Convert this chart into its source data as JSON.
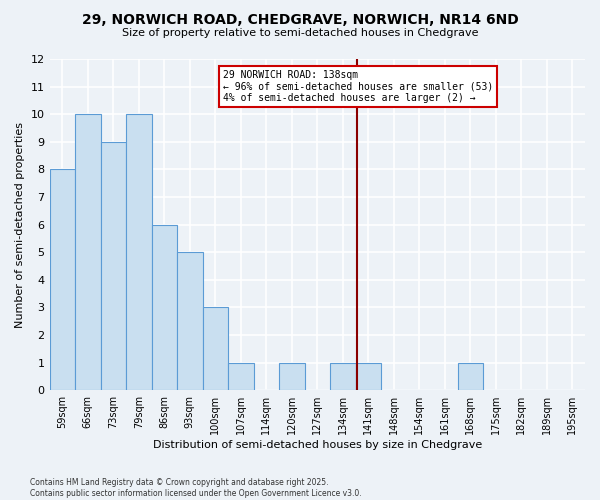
{
  "title": "29, NORWICH ROAD, CHEDGRAVE, NORWICH, NR14 6ND",
  "subtitle": "Size of property relative to semi-detached houses in Chedgrave",
  "xlabel": "Distribution of semi-detached houses by size in Chedgrave",
  "ylabel": "Number of semi-detached properties",
  "footnote1": "Contains HM Land Registry data © Crown copyright and database right 2025.",
  "footnote2": "Contains public sector information licensed under the Open Government Licence v3.0.",
  "bins": [
    "59sqm",
    "66sqm",
    "73sqm",
    "79sqm",
    "86sqm",
    "93sqm",
    "100sqm",
    "107sqm",
    "114sqm",
    "120sqm",
    "127sqm",
    "134sqm",
    "141sqm",
    "148sqm",
    "154sqm",
    "161sqm",
    "168sqm",
    "175sqm",
    "182sqm",
    "189sqm",
    "195sqm"
  ],
  "values": [
    8,
    10,
    9,
    10,
    6,
    5,
    3,
    1,
    0,
    1,
    0,
    1,
    1,
    0,
    0,
    0,
    1,
    0,
    0,
    0,
    0
  ],
  "bar_color": "#c9dff0",
  "bar_edge_color": "#5b9bd5",
  "annotation_line1": "29 NORWICH ROAD: 138sqm",
  "annotation_line2": "← 96% of semi-detached houses are smaller (53)",
  "annotation_line3": "4% of semi-detached houses are larger (2) →",
  "annotation_box_edgecolor": "#cc0000",
  "vline_color": "#8b0000",
  "vline_pos": 11.57,
  "ylim": [
    0,
    12
  ],
  "yticks": [
    0,
    1,
    2,
    3,
    4,
    5,
    6,
    7,
    8,
    9,
    10,
    11,
    12
  ],
  "background_color": "#edf2f7",
  "grid_color": "white"
}
